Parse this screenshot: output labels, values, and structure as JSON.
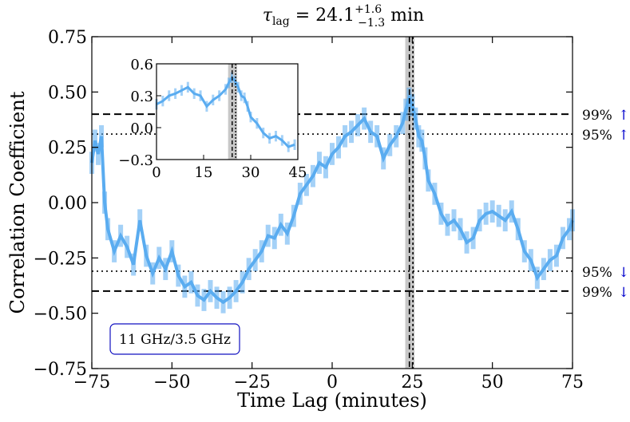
{
  "chart_data": {
    "type": "line",
    "title_prefix": "τ",
    "title_sub": "lag",
    "title_mid": " = 24.1",
    "title_sup": "+1.6",
    "title_subscript": "−1.3",
    "title_unit": " min",
    "xlabel": "Time Lag (minutes)",
    "ylabel": "Correlation Coefficient",
    "xlim": [
      -75,
      75
    ],
    "ylim": [
      -0.75,
      0.75
    ],
    "xticks": [
      -75,
      -50,
      -25,
      0,
      25,
      50,
      75
    ],
    "xtick_labels": [
      "−75",
      "−50",
      "−25",
      "0",
      "25",
      "50",
      "75"
    ],
    "yticks": [
      0.75,
      0.5,
      0.25,
      0.0,
      -0.25,
      -0.5,
      -0.75
    ],
    "ytick_labels": [
      "0.75",
      "0.50",
      "0.25",
      "0.00",
      "−0.25",
      "−0.50",
      "−0.75"
    ],
    "series": [
      {
        "name": "11 GHz/3.5 GHz",
        "color": "#5aacf0",
        "x": [
          -75,
          -74,
          -73,
          -72,
          -71,
          -70,
          -68,
          -66,
          -64,
          -62,
          -60,
          -58,
          -56,
          -54,
          -52,
          -50,
          -48,
          -46,
          -44,
          -42,
          -40,
          -38,
          -36,
          -34,
          -32,
          -30,
          -28,
          -26,
          -24,
          -22,
          -20,
          -18,
          -16,
          -14,
          -12,
          -10,
          -8,
          -6,
          -4,
          -2,
          0,
          2,
          4,
          6,
          8,
          10,
          12,
          14,
          16,
          18,
          20,
          22,
          23,
          24,
          25,
          26,
          27,
          28,
          29,
          30,
          32,
          34,
          36,
          38,
          40,
          42,
          44,
          46,
          48,
          50,
          52,
          54,
          56,
          58,
          60,
          62,
          64,
          66,
          68,
          70,
          72,
          74,
          75
        ],
        "y": [
          0.18,
          0.28,
          0.22,
          0.3,
          0.0,
          -0.12,
          -0.22,
          -0.15,
          -0.2,
          -0.28,
          -0.08,
          -0.24,
          -0.32,
          -0.25,
          -0.3,
          -0.22,
          -0.33,
          -0.38,
          -0.36,
          -0.42,
          -0.44,
          -0.4,
          -0.43,
          -0.45,
          -0.43,
          -0.4,
          -0.36,
          -0.3,
          -0.26,
          -0.22,
          -0.15,
          -0.16,
          -0.1,
          -0.14,
          -0.06,
          0.04,
          0.08,
          0.12,
          0.18,
          0.16,
          0.22,
          0.25,
          0.3,
          0.32,
          0.35,
          0.38,
          0.32,
          0.3,
          0.2,
          0.26,
          0.3,
          0.36,
          0.42,
          0.47,
          0.44,
          0.38,
          0.3,
          0.28,
          0.2,
          0.1,
          0.04,
          -0.05,
          -0.1,
          -0.08,
          -0.12,
          -0.18,
          -0.16,
          -0.08,
          -0.05,
          -0.04,
          -0.06,
          -0.08,
          -0.04,
          -0.12,
          -0.22,
          -0.26,
          -0.34,
          -0.3,
          -0.26,
          -0.24,
          -0.16,
          -0.12,
          -0.08
        ],
        "error": 0.05
      }
    ],
    "lag_line_x": 24.1,
    "lag_band": [
      22.8,
      25.7
    ],
    "second_line_x": 25.2,
    "thresholds": [
      {
        "label": "99%",
        "value": 0.4,
        "style": "dashed",
        "arrow": "↑"
      },
      {
        "label": "95%",
        "value": 0.31,
        "style": "dotted",
        "arrow": "↑"
      },
      {
        "label": "95%",
        "value": -0.31,
        "style": "dotted",
        "arrow": "↓"
      },
      {
        "label": "99%",
        "value": -0.4,
        "style": "dashed",
        "arrow": "↓"
      }
    ],
    "legend_label": "11 GHz/3.5 GHz",
    "legend_placement": "bottom-left",
    "inset": {
      "xlim": [
        0,
        45
      ],
      "ylim": [
        -0.3,
        0.6
      ],
      "xticks": [
        0,
        15,
        30,
        45
      ],
      "xtick_labels": [
        "0",
        "15",
        "30",
        "45"
      ],
      "yticks": [
        0.6,
        0.3,
        0.0,
        -0.3
      ],
      "ytick_labels": [
        "0.6",
        "0.3",
        "0.0",
        "−0.3"
      ],
      "lag_line_x": 24.1,
      "second_line_x": 25.2,
      "lag_band": [
        22.8,
        25.7
      ],
      "placement": "top-left"
    }
  },
  "colors": {
    "series": "#5aacf0",
    "band": "#c8c8c8",
    "arrow": "#0000cc",
    "legend_border": "#1010c0"
  }
}
